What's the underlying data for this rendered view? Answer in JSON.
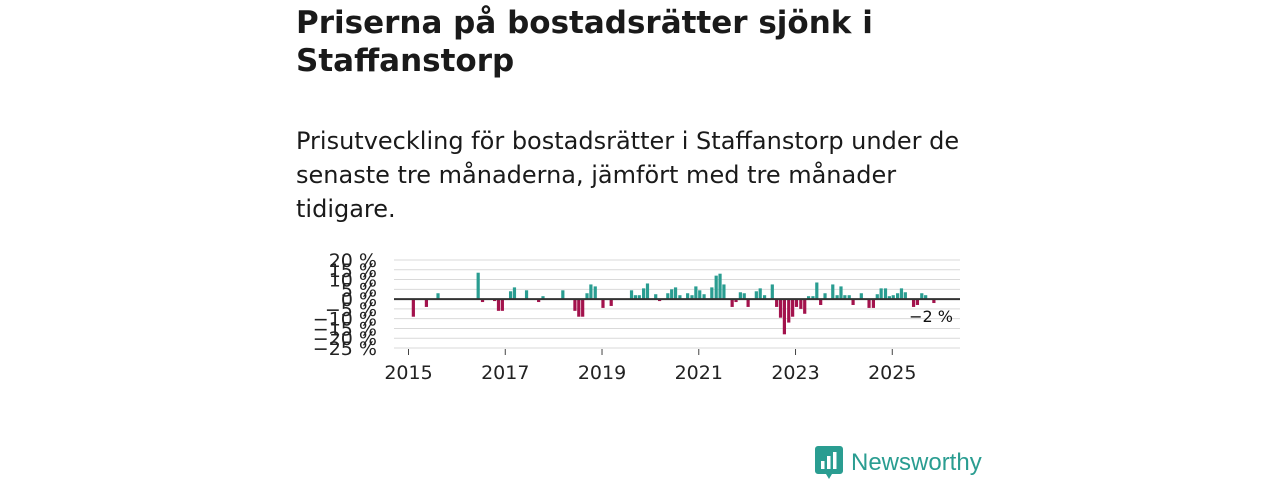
{
  "header": {
    "title": "Priserna på bostadsrätter sjönk i Staffanstorp",
    "subtitle": "Prisutveckling för bostadsrätter i Staffanstorp under de senaste tre månaderna, jämfört med tre månader tidigare."
  },
  "brand": {
    "name": "Newsworthy",
    "icon": "bar-chart-speech-icon",
    "color": "#2a9d91"
  },
  "colors": {
    "positive": "#2a9d91",
    "negative": "#a3124c",
    "grid": "#d9d9d9",
    "zero": "#333333"
  },
  "chart_data": {
    "type": "bar",
    "title": "",
    "xlabel": "",
    "ylabel": "",
    "ylim": [
      -25,
      20
    ],
    "yticks": [
      20,
      15,
      10,
      5,
      0,
      -5,
      -10,
      -15,
      -20,
      -25
    ],
    "ytick_labels": [
      "20 %",
      "15 %",
      "10 %",
      "5 %",
      "0 %",
      "−5 %",
      "−10 %",
      "−15 %",
      "−20 %",
      "−25 %"
    ],
    "xlim": [
      2014.7,
      2026.4
    ],
    "xticks": [
      2015,
      2017,
      2019,
      2021,
      2023,
      2025
    ],
    "xtick_labels": [
      "2015",
      "2017",
      "2019",
      "2021",
      "2023",
      "2025"
    ],
    "last_value_label": "−2 %",
    "series": [
      {
        "name": "Prisutveckling",
        "points": [
          {
            "x": 2015.1,
            "y": -9
          },
          {
            "x": 2015.37,
            "y": -4
          },
          {
            "x": 2015.61,
            "y": 3
          },
          {
            "x": 2016.44,
            "y": 13.5
          },
          {
            "x": 2016.53,
            "y": -1.5
          },
          {
            "x": 2016.78,
            "y": -1
          },
          {
            "x": 2016.86,
            "y": -6
          },
          {
            "x": 2016.94,
            "y": -6
          },
          {
            "x": 2017.11,
            "y": 4
          },
          {
            "x": 2017.19,
            "y": 6
          },
          {
            "x": 2017.44,
            "y": 4.5
          },
          {
            "x": 2017.69,
            "y": -1.5
          },
          {
            "x": 2017.78,
            "y": 1.5
          },
          {
            "x": 2018.19,
            "y": 4.5
          },
          {
            "x": 2018.44,
            "y": -6
          },
          {
            "x": 2018.52,
            "y": -9
          },
          {
            "x": 2018.6,
            "y": -9
          },
          {
            "x": 2018.69,
            "y": 3
          },
          {
            "x": 2018.77,
            "y": 7.5
          },
          {
            "x": 2018.86,
            "y": 6.5
          },
          {
            "x": 2019.02,
            "y": -4.5
          },
          {
            "x": 2019.19,
            "y": -3.5
          },
          {
            "x": 2019.61,
            "y": 4.5
          },
          {
            "x": 2019.69,
            "y": 2
          },
          {
            "x": 2019.77,
            "y": 2
          },
          {
            "x": 2019.86,
            "y": 5.5
          },
          {
            "x": 2019.94,
            "y": 8
          },
          {
            "x": 2020.11,
            "y": 2.5
          },
          {
            "x": 2020.19,
            "y": -1
          },
          {
            "x": 2020.36,
            "y": 3
          },
          {
            "x": 2020.44,
            "y": 5
          },
          {
            "x": 2020.52,
            "y": 6
          },
          {
            "x": 2020.61,
            "y": 2
          },
          {
            "x": 2020.77,
            "y": 3
          },
          {
            "x": 2020.86,
            "y": 2
          },
          {
            "x": 2020.94,
            "y": 6.5
          },
          {
            "x": 2021.02,
            "y": 4.5
          },
          {
            "x": 2021.11,
            "y": 2.5
          },
          {
            "x": 2021.27,
            "y": 6
          },
          {
            "x": 2021.36,
            "y": 12
          },
          {
            "x": 2021.44,
            "y": 13
          },
          {
            "x": 2021.52,
            "y": 7.5
          },
          {
            "x": 2021.69,
            "y": -4
          },
          {
            "x": 2021.77,
            "y": -1.5
          },
          {
            "x": 2021.86,
            "y": 3.5
          },
          {
            "x": 2021.94,
            "y": 3
          },
          {
            "x": 2022.02,
            "y": -4
          },
          {
            "x": 2022.19,
            "y": 4
          },
          {
            "x": 2022.27,
            "y": 5.5
          },
          {
            "x": 2022.36,
            "y": 2
          },
          {
            "x": 2022.52,
            "y": 7.5
          },
          {
            "x": 2022.61,
            "y": -4
          },
          {
            "x": 2022.69,
            "y": -9.5
          },
          {
            "x": 2022.77,
            "y": -18
          },
          {
            "x": 2022.86,
            "y": -12
          },
          {
            "x": 2022.94,
            "y": -9
          },
          {
            "x": 2023.02,
            "y": -4
          },
          {
            "x": 2023.11,
            "y": -5
          },
          {
            "x": 2023.19,
            "y": -7.5
          },
          {
            "x": 2023.27,
            "y": 1.5
          },
          {
            "x": 2023.36,
            "y": 1.5
          },
          {
            "x": 2023.44,
            "y": 8.5
          },
          {
            "x": 2023.52,
            "y": -3
          },
          {
            "x": 2023.61,
            "y": 3
          },
          {
            "x": 2023.77,
            "y": 7.5
          },
          {
            "x": 2023.86,
            "y": 2
          },
          {
            "x": 2023.94,
            "y": 6.5
          },
          {
            "x": 2024.02,
            "y": 2
          },
          {
            "x": 2024.11,
            "y": 2
          },
          {
            "x": 2024.19,
            "y": -3
          },
          {
            "x": 2024.36,
            "y": 3
          },
          {
            "x": 2024.52,
            "y": -4.5
          },
          {
            "x": 2024.61,
            "y": -4.5
          },
          {
            "x": 2024.69,
            "y": 2.5
          },
          {
            "x": 2024.77,
            "y": 5.5
          },
          {
            "x": 2024.86,
            "y": 5.5
          },
          {
            "x": 2024.94,
            "y": 1.5
          },
          {
            "x": 2025.02,
            "y": 2
          },
          {
            "x": 2025.11,
            "y": 3
          },
          {
            "x": 2025.19,
            "y": 5.5
          },
          {
            "x": 2025.27,
            "y": 3.5
          },
          {
            "x": 2025.44,
            "y": -4
          },
          {
            "x": 2025.52,
            "y": -3
          },
          {
            "x": 2025.61,
            "y": 3
          },
          {
            "x": 2025.69,
            "y": 2
          },
          {
            "x": 2025.86,
            "y": -2
          }
        ]
      }
    ]
  }
}
